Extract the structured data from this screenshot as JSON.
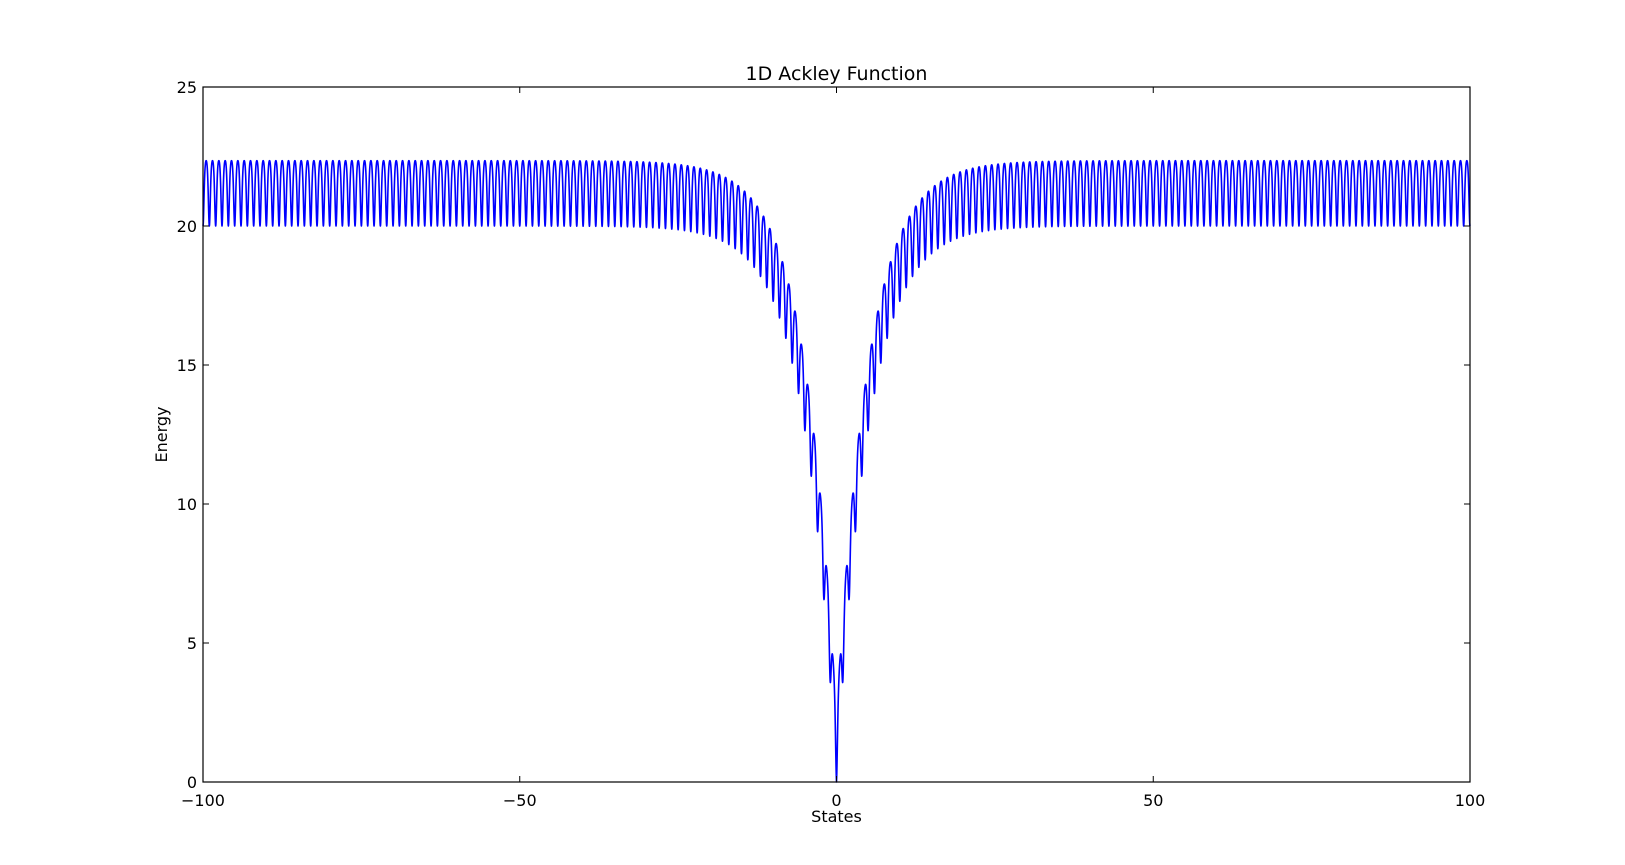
{
  "chart_data": {
    "type": "line",
    "title": "1D Ackley Function",
    "xlabel": "States",
    "ylabel": "Energy",
    "xlim": [
      -100,
      100
    ],
    "ylim": [
      0,
      25
    ],
    "x_ticks": [
      -100,
      -50,
      0,
      50,
      100
    ],
    "x_tick_labels": [
      "−100",
      "−50",
      "0",
      "50",
      "100"
    ],
    "y_ticks": [
      0,
      5,
      10,
      15,
      20,
      25
    ],
    "y_tick_labels": [
      "0",
      "5",
      "10",
      "15",
      "20",
      "25"
    ],
    "grid": false,
    "series": [
      {
        "function": "ackley_1d",
        "parameters": {
          "a": 20,
          "b": 0.2,
          "c": 6.283185307
        },
        "x_range": [
          -100,
          100
        ],
        "color": "#0000ff"
      }
    ]
  }
}
